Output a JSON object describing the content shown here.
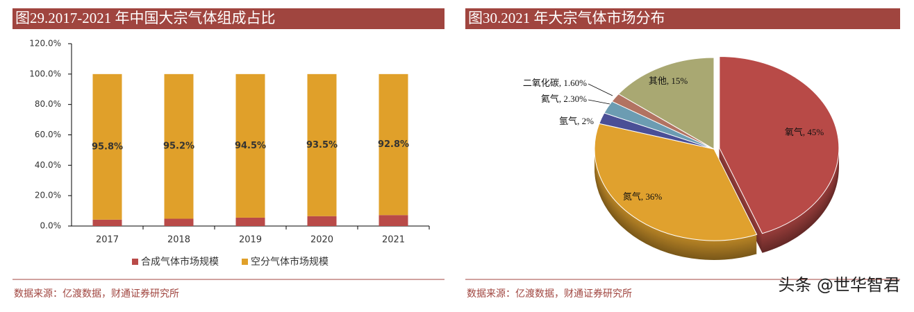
{
  "chart_data": [
    {
      "type": "bar",
      "stacked": true,
      "title": "图29.2017-2021 年中国大宗气体组成占比",
      "categories": [
        "2017",
        "2018",
        "2019",
        "2020",
        "2021"
      ],
      "series": [
        {
          "name": "合成气体市场规模",
          "color": "#b94a48",
          "values": [
            4.2,
            4.8,
            5.5,
            6.5,
            7.2
          ]
        },
        {
          "name": "空分气体市场规模",
          "color": "#e0a02a",
          "values": [
            95.8,
            95.2,
            94.5,
            93.5,
            92.8
          ],
          "value_labels": [
            "95.8%",
            "95.2%",
            "94.5%",
            "93.5%",
            "92.8%"
          ]
        }
      ],
      "ylim": [
        0,
        120
      ],
      "yticks": [
        {
          "value": 0,
          "label": "0.0%"
        },
        {
          "value": 20,
          "label": "20.0%"
        },
        {
          "value": 40,
          "label": "40.0%"
        },
        {
          "value": 60,
          "label": "60.0%"
        },
        {
          "value": 80,
          "label": "80.0%"
        },
        {
          "value": 100,
          "label": "100.0%"
        },
        {
          "value": 120,
          "label": "120.0%"
        }
      ],
      "legend": "bottom",
      "source": "数据来源：亿渡数据，财通证券研究所"
    },
    {
      "type": "pie",
      "title": "图30.2021 年大宗气体市场分布",
      "values": [
        45,
        36,
        2,
        2.3,
        1.6,
        15
      ],
      "labels": [
        "氧气, 45%",
        "氮气, 36%",
        "氩气, 2%",
        "氦气, 2.30%",
        "二氧化碳, 1.60%",
        "其他, 15%"
      ],
      "colors": [
        "#b84a47",
        "#e0a12e",
        "#4a4f96",
        "#6c9cb2",
        "#b27362",
        "#a9a872"
      ],
      "source": "数据来源：亿渡数据，财通证券研究所"
    }
  ],
  "watermark": "头条 @世华智君"
}
